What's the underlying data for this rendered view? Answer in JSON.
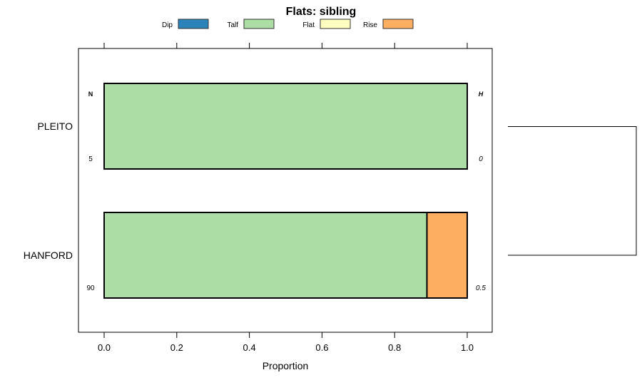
{
  "chart_data": {
    "type": "bar",
    "orientation": "horizontal",
    "stacked": true,
    "title": "Flats: sibling",
    "xlabel": "Proportion",
    "ylabel": "",
    "xlim": [
      -0.07,
      1.07
    ],
    "xticks": [
      "0.0",
      "0.2",
      "0.4",
      "0.6",
      "0.8",
      "1.0"
    ],
    "xtick_values": [
      0,
      0.2,
      0.4,
      0.6,
      0.8,
      1.0
    ],
    "legend": {
      "placement": "top",
      "entries": [
        {
          "name": "Dip",
          "color": "#2b83ba"
        },
        {
          "name": "Talf",
          "color": "#abdda4"
        },
        {
          "name": "Flat",
          "color": "#ffffbf"
        },
        {
          "name": "Rise",
          "color": "#fdae61"
        }
      ]
    },
    "left_header": "N",
    "right_header": "H",
    "categories": [
      "PLEITO",
      "HANFORD"
    ],
    "n_values": [
      "5",
      "90"
    ],
    "h_values": [
      "0",
      "0.5"
    ],
    "series": [
      {
        "name": "Dip",
        "values": [
          0,
          0
        ]
      },
      {
        "name": "Talf",
        "values": [
          1.0,
          0.889
        ]
      },
      {
        "name": "Flat",
        "values": [
          0,
          0
        ]
      },
      {
        "name": "Rise",
        "values": [
          0,
          0.111
        ]
      }
    ],
    "dendrogram": true
  }
}
